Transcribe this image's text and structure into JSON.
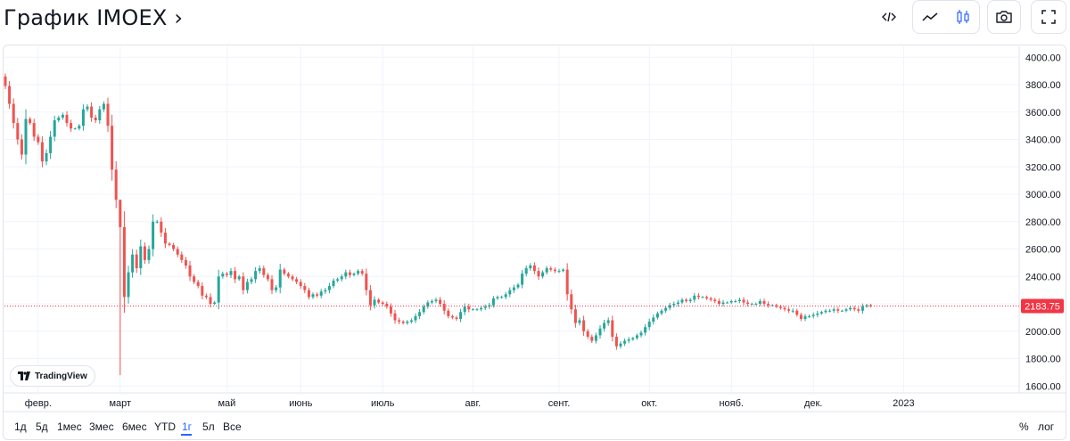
{
  "header": {
    "title": "График IMOEX ›"
  },
  "toolbar": {
    "embed_icon": "code-icon",
    "line_icon": "line-chart-icon",
    "candle_icon": "candles-icon",
    "snapshot_icon": "camera-icon",
    "fullscreen_icon": "fullscreen-icon"
  },
  "logo": {
    "text": "TradingView"
  },
  "ranges": [
    "1д",
    "5д",
    "1мес",
    "3мес",
    "6мес",
    "YTD",
    "1г",
    "5л",
    "Все"
  ],
  "active_range": "1г",
  "scale_options": {
    "percent": "%",
    "log": "лог"
  },
  "colors": {
    "up": "#26a69a",
    "down": "#ef5350",
    "last_price": "#f23645",
    "grid": "#f0f3fa",
    "text": "#131722",
    "active": "#2962ff"
  },
  "chart_data": {
    "type": "candlestick",
    "title": "График IMOEX",
    "ylim": [
      1550,
      4080
    ],
    "y_ticks": [
      1600,
      1800,
      2000,
      2200,
      2400,
      2600,
      2800,
      3000,
      3200,
      3400,
      3600,
      3800,
      4000
    ],
    "y_tick_labels": [
      "1600.00",
      "1800.00",
      "2000.00",
      "2200.00",
      "2400.00",
      "2600.00",
      "2800.00",
      "3000.00",
      "3200.00",
      "3400.00",
      "3600.00",
      "3800.00",
      "4000.00"
    ],
    "x_labels": [
      {
        "label": "февр.",
        "index": 8
      },
      {
        "label": "март",
        "index": 28
      },
      {
        "label": "май",
        "index": 54
      },
      {
        "label": "июнь",
        "index": 72
      },
      {
        "label": "июль",
        "index": 92
      },
      {
        "label": "авг.",
        "index": 114
      },
      {
        "label": "сент.",
        "index": 135
      },
      {
        "label": "окт.",
        "index": 157
      },
      {
        "label": "нояб.",
        "index": 177
      },
      {
        "label": "дек.",
        "index": 197
      },
      {
        "label": "2023",
        "index": 219
      }
    ],
    "last_price": 2183.75,
    "last_price_label": "2183.75",
    "closes": [
      3790,
      3660,
      3520,
      3400,
      3290,
      3550,
      3520,
      3420,
      3380,
      3240,
      3300,
      3420,
      3540,
      3560,
      3580,
      3520,
      3480,
      3480,
      3500,
      3620,
      3640,
      3560,
      3540,
      3620,
      3660,
      3500,
      3180,
      2960,
      2760,
      2250,
      2430,
      2560,
      2460,
      2620,
      2520,
      2600,
      2800,
      2800,
      2720,
      2640,
      2630,
      2600,
      2560,
      2520,
      2480,
      2400,
      2360,
      2330,
      2260,
      2250,
      2200,
      2210,
      2400,
      2420,
      2410,
      2440,
      2380,
      2400,
      2300,
      2360,
      2380,
      2440,
      2460,
      2410,
      2380,
      2300,
      2320,
      2450,
      2420,
      2400,
      2380,
      2360,
      2330,
      2300,
      2250,
      2270,
      2260,
      2290,
      2300,
      2330,
      2370,
      2380,
      2400,
      2430,
      2410,
      2420,
      2440,
      2420,
      2300,
      2190,
      2230,
      2210,
      2200,
      2180,
      2130,
      2080,
      2070,
      2060,
      2070,
      2080,
      2110,
      2140,
      2180,
      2210,
      2220,
      2230,
      2200,
      2150,
      2110,
      2100,
      2090,
      2140,
      2180,
      2160,
      2160,
      2160,
      2170,
      2180,
      2190,
      2240,
      2250,
      2250,
      2270,
      2300,
      2320,
      2340,
      2420,
      2460,
      2480,
      2440,
      2400,
      2430,
      2460,
      2450,
      2440,
      2440,
      2450,
      2270,
      2160,
      2060,
      2080,
      2000,
      1960,
      1930,
      1970,
      2020,
      2060,
      2080,
      1960,
      1890,
      1910,
      1930,
      1940,
      1950,
      1970,
      1990,
      2030,
      2070,
      2100,
      2130,
      2150,
      2170,
      2190,
      2200,
      2210,
      2230,
      2220,
      2230,
      2260,
      2250,
      2250,
      2240,
      2230,
      2220,
      2200,
      2210,
      2210,
      2220,
      2220,
      2230,
      2210,
      2200,
      2200,
      2200,
      2220,
      2200,
      2190,
      2190,
      2180,
      2170,
      2160,
      2150,
      2150,
      2120,
      2090,
      2110,
      2110,
      2120,
      2130,
      2140,
      2150,
      2150,
      2160,
      2150,
      2150,
      2160,
      2170,
      2160,
      2150,
      2180,
      2190,
      2184
    ]
  }
}
